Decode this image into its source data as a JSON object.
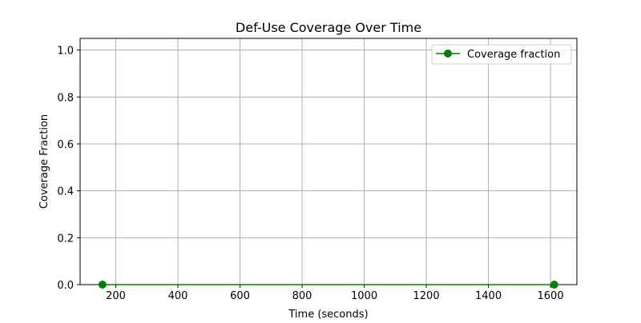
{
  "chart_data": {
    "type": "line",
    "title": "Def-Use Coverage Over Time",
    "xlabel": "Time (seconds)",
    "ylabel": "Coverage Fraction",
    "xlim": [
      85,
      1685
    ],
    "ylim": [
      0.0,
      1.05
    ],
    "x_ticks": [
      200,
      400,
      600,
      800,
      1000,
      1200,
      1400,
      1600
    ],
    "y_ticks": [
      0.0,
      0.2,
      0.4,
      0.6,
      0.8,
      1.0
    ],
    "x_tick_labels": [
      "200",
      "400",
      "600",
      "800",
      "1000",
      "1200",
      "1400",
      "1600"
    ],
    "y_tick_labels": [
      "0.0",
      "0.2",
      "0.4",
      "0.6",
      "0.8",
      "1.0"
    ],
    "grid": true,
    "legend_position": "top-right",
    "series": [
      {
        "name": "Coverage fraction",
        "color": "#008000",
        "marker": "circle",
        "x": [
          157,
          1612
        ],
        "y": [
          0.0,
          0.0
        ]
      }
    ]
  }
}
